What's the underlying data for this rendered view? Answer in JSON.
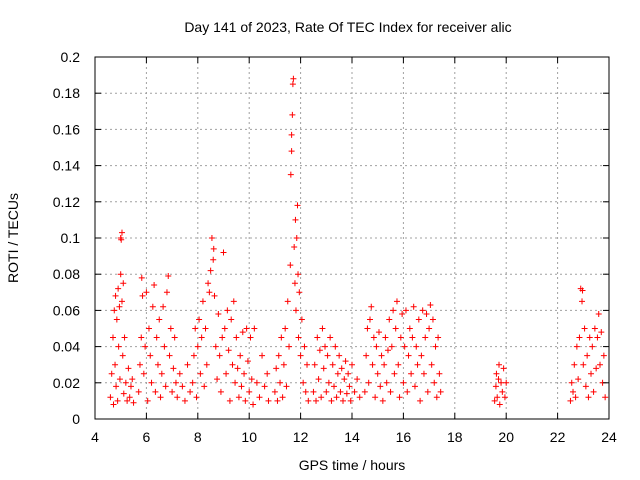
{
  "chart_data": {
    "type": "scatter",
    "title": "Day 141 of 2023, Rate Of TEC Index for receiver alic",
    "xlabel": "GPS time / hours",
    "ylabel": "ROTI / TECUs",
    "xlim": [
      4,
      24
    ],
    "ylim": [
      0,
      0.2
    ],
    "xticks": [
      4,
      6,
      8,
      10,
      12,
      14,
      16,
      18,
      20,
      22,
      24
    ],
    "yticks": [
      0,
      0.02,
      0.04,
      0.06,
      0.08,
      0.1,
      0.12,
      0.14,
      0.16,
      0.18,
      0.2
    ],
    "xtick_labels": [
      "4",
      "6",
      "8",
      "10",
      "12",
      "14",
      "16",
      "18",
      "20",
      "22",
      "24"
    ],
    "ytick_labels": [
      "0",
      "0.02",
      "0.04",
      "0.06",
      "0.08",
      "0.1",
      "0.12",
      "0.14",
      "0.16",
      "0.18",
      "0.2"
    ],
    "grid": true,
    "marker": "+",
    "color": "#ff0000",
    "series": [
      {
        "name": "ROTI",
        "points": [
          [
            4.6,
            0.012
          ],
          [
            4.65,
            0.025
          ],
          [
            4.7,
            0.045
          ],
          [
            4.72,
            0.008
          ],
          [
            4.75,
            0.06
          ],
          [
            4.78,
            0.03
          ],
          [
            4.8,
            0.068
          ],
          [
            4.82,
            0.018
          ],
          [
            4.85,
            0.055
          ],
          [
            4.88,
            0.01
          ],
          [
            4.9,
            0.072
          ],
          [
            4.92,
            0.04
          ],
          [
            4.95,
            0.062
          ],
          [
            4.97,
            0.022
          ],
          [
            5.0,
            0.08
          ],
          [
            5.0,
            0.1
          ],
          [
            5.02,
            0.099
          ],
          [
            5.05,
            0.103
          ],
          [
            5.05,
            0.065
          ],
          [
            5.08,
            0.035
          ],
          [
            5.1,
            0.075
          ],
          [
            5.12,
            0.014
          ],
          [
            5.15,
            0.045
          ],
          [
            5.2,
            0.02
          ],
          [
            5.25,
            0.01
          ],
          [
            5.3,
            0.028
          ],
          [
            5.35,
            0.012
          ],
          [
            5.4,
            0.018
          ],
          [
            5.45,
            0.022
          ],
          [
            5.5,
            0.009
          ],
          [
            5.7,
            0.015
          ],
          [
            5.75,
            0.03
          ],
          [
            5.8,
            0.045
          ],
          [
            5.82,
            0.078
          ],
          [
            5.85,
            0.068
          ],
          [
            5.9,
            0.025
          ],
          [
            5.95,
            0.04
          ],
          [
            6.0,
            0.07
          ],
          [
            6.05,
            0.01
          ],
          [
            6.1,
            0.05
          ],
          [
            6.15,
            0.035
          ],
          [
            6.2,
            0.02
          ],
          [
            6.25,
            0.062
          ],
          [
            6.3,
            0.074
          ],
          [
            6.35,
            0.015
          ],
          [
            6.4,
            0.045
          ],
          [
            6.45,
            0.03
          ],
          [
            6.5,
            0.055
          ],
          [
            6.55,
            0.012
          ],
          [
            6.6,
            0.025
          ],
          [
            6.65,
            0.062
          ],
          [
            6.7,
            0.04
          ],
          [
            6.75,
            0.018
          ],
          [
            6.8,
            0.07
          ],
          [
            6.85,
            0.079
          ],
          [
            6.9,
            0.035
          ],
          [
            6.95,
            0.05
          ],
          [
            7.0,
            0.015
          ],
          [
            7.05,
            0.028
          ],
          [
            7.1,
            0.045
          ],
          [
            7.15,
            0.02
          ],
          [
            7.2,
            0.012
          ],
          [
            7.3,
            0.025
          ],
          [
            7.4,
            0.018
          ],
          [
            7.5,
            0.01
          ],
          [
            7.6,
            0.03
          ],
          [
            7.7,
            0.015
          ],
          [
            7.8,
            0.02
          ],
          [
            7.85,
            0.035
          ],
          [
            7.9,
            0.05
          ],
          [
            7.95,
            0.012
          ],
          [
            8.0,
            0.04
          ],
          [
            8.05,
            0.055
          ],
          [
            8.1,
            0.025
          ],
          [
            8.15,
            0.045
          ],
          [
            8.2,
            0.065
          ],
          [
            8.25,
            0.018
          ],
          [
            8.3,
            0.05
          ],
          [
            8.35,
            0.03
          ],
          [
            8.4,
            0.075
          ],
          [
            8.45,
            0.07
          ],
          [
            8.5,
            0.082
          ],
          [
            8.55,
            0.1
          ],
          [
            8.6,
            0.088
          ],
          [
            8.62,
            0.094
          ],
          [
            8.65,
            0.068
          ],
          [
            8.7,
            0.04
          ],
          [
            8.75,
            0.022
          ],
          [
            8.8,
            0.058
          ],
          [
            8.85,
            0.035
          ],
          [
            8.9,
            0.015
          ],
          [
            8.95,
            0.045
          ],
          [
            9.0,
            0.092
          ],
          [
            9.05,
            0.05
          ],
          [
            9.1,
            0.025
          ],
          [
            9.15,
            0.06
          ],
          [
            9.2,
            0.038
          ],
          [
            9.25,
            0.01
          ],
          [
            9.3,
            0.055
          ],
          [
            9.35,
            0.03
          ],
          [
            9.4,
            0.065
          ],
          [
            9.45,
            0.02
          ],
          [
            9.5,
            0.045
          ],
          [
            9.55,
            0.028
          ],
          [
            9.6,
            0.012
          ],
          [
            9.65,
            0.035
          ],
          [
            9.7,
            0.018
          ],
          [
            9.75,
            0.048
          ],
          [
            9.8,
            0.025
          ],
          [
            9.85,
            0.01
          ],
          [
            9.9,
            0.05
          ],
          [
            9.95,
            0.032
          ],
          [
            10.0,
            0.015
          ],
          [
            10.05,
            0.045
          ],
          [
            10.1,
            0.022
          ],
          [
            10.15,
            0.008
          ],
          [
            10.2,
            0.05
          ],
          [
            10.3,
            0.02
          ],
          [
            10.4,
            0.012
          ],
          [
            10.5,
            0.035
          ],
          [
            10.6,
            0.018
          ],
          [
            10.7,
            0.025
          ],
          [
            10.75,
            0.01
          ],
          [
            11.0,
            0.015
          ],
          [
            11.05,
            0.028
          ],
          [
            11.1,
            0.01
          ],
          [
            11.15,
            0.035
          ],
          [
            11.2,
            0.02
          ],
          [
            11.25,
            0.045
          ],
          [
            11.3,
            0.012
          ],
          [
            11.35,
            0.03
          ],
          [
            11.4,
            0.05
          ],
          [
            11.45,
            0.018
          ],
          [
            11.5,
            0.065
          ],
          [
            11.55,
            0.04
          ],
          [
            11.6,
            0.085
          ],
          [
            11.62,
            0.135
          ],
          [
            11.65,
            0.148
          ],
          [
            11.65,
            0.157
          ],
          [
            11.68,
            0.168
          ],
          [
            11.7,
            0.185
          ],
          [
            11.72,
            0.188
          ],
          [
            11.75,
            0.095
          ],
          [
            11.78,
            0.075
          ],
          [
            11.8,
            0.11
          ],
          [
            11.82,
            0.06
          ],
          [
            11.85,
            0.1
          ],
          [
            11.88,
            0.118
          ],
          [
            11.9,
            0.08
          ],
          [
            11.92,
            0.045
          ],
          [
            11.95,
            0.07
          ],
          [
            12.0,
            0.035
          ],
          [
            12.05,
            0.055
          ],
          [
            12.1,
            0.02
          ],
          [
            12.15,
            0.04
          ],
          [
            12.2,
            0.015
          ],
          [
            12.25,
            0.03
          ],
          [
            12.3,
            0.01
          ],
          [
            12.5,
            0.015
          ],
          [
            12.55,
            0.03
          ],
          [
            12.6,
            0.01
          ],
          [
            12.65,
            0.045
          ],
          [
            12.7,
            0.022
          ],
          [
            12.75,
            0.038
          ],
          [
            12.8,
            0.012
          ],
          [
            12.85,
            0.05
          ],
          [
            12.9,
            0.028
          ],
          [
            12.95,
            0.04
          ],
          [
            13.0,
            0.015
          ],
          [
            13.05,
            0.035
          ],
          [
            13.1,
            0.02
          ],
          [
            13.15,
            0.045
          ],
          [
            13.2,
            0.01
          ],
          [
            13.25,
            0.03
          ],
          [
            13.3,
            0.018
          ],
          [
            13.35,
            0.04
          ],
          [
            13.4,
            0.012
          ],
          [
            13.45,
            0.025
          ],
          [
            13.5,
            0.035
          ],
          [
            13.55,
            0.015
          ],
          [
            13.6,
            0.028
          ],
          [
            13.65,
            0.01
          ],
          [
            13.7,
            0.022
          ],
          [
            13.75,
            0.032
          ],
          [
            13.8,
            0.014
          ],
          [
            13.85,
            0.025
          ],
          [
            13.9,
            0.018
          ],
          [
            13.95,
            0.01
          ],
          [
            14.0,
            0.03
          ],
          [
            14.1,
            0.015
          ],
          [
            14.2,
            0.022
          ],
          [
            14.3,
            0.012
          ],
          [
            14.5,
            0.015
          ],
          [
            14.55,
            0.035
          ],
          [
            14.6,
            0.05
          ],
          [
            14.65,
            0.02
          ],
          [
            14.7,
            0.055
          ],
          [
            14.75,
            0.062
          ],
          [
            14.8,
            0.03
          ],
          [
            14.85,
            0.045
          ],
          [
            14.9,
            0.012
          ],
          [
            14.95,
            0.04
          ],
          [
            15.0,
            0.025
          ],
          [
            15.05,
            0.048
          ],
          [
            15.1,
            0.018
          ],
          [
            15.15,
            0.035
          ],
          [
            15.2,
            0.01
          ],
          [
            15.25,
            0.03
          ],
          [
            15.3,
            0.045
          ],
          [
            15.35,
            0.02
          ],
          [
            15.4,
            0.038
          ],
          [
            15.45,
            0.055
          ],
          [
            15.5,
            0.015
          ],
          [
            15.55,
            0.04
          ],
          [
            15.6,
            0.06
          ],
          [
            15.65,
            0.025
          ],
          [
            15.7,
            0.05
          ],
          [
            15.75,
            0.065
          ],
          [
            15.8,
            0.03
          ],
          [
            15.85,
            0.012
          ],
          [
            15.9,
            0.045
          ],
          [
            15.95,
            0.058
          ],
          [
            16.0,
            0.02
          ],
          [
            16.05,
            0.04
          ],
          [
            16.1,
            0.06
          ],
          [
            16.15,
            0.015
          ],
          [
            16.2,
            0.035
          ],
          [
            16.25,
            0.05
          ],
          [
            16.3,
            0.025
          ],
          [
            16.35,
            0.045
          ],
          [
            16.4,
            0.062
          ],
          [
            16.45,
            0.018
          ],
          [
            16.5,
            0.04
          ],
          [
            16.55,
            0.03
          ],
          [
            16.6,
            0.055
          ],
          [
            16.65,
            0.01
          ],
          [
            16.7,
            0.035
          ],
          [
            16.75,
            0.06
          ],
          [
            16.8,
            0.025
          ],
          [
            16.85,
            0.045
          ],
          [
            16.9,
            0.058
          ],
          [
            16.95,
            0.015
          ],
          [
            17.0,
            0.05
          ],
          [
            17.05,
            0.063
          ],
          [
            17.1,
            0.03
          ],
          [
            17.15,
            0.055
          ],
          [
            17.2,
            0.02
          ],
          [
            17.25,
            0.04
          ],
          [
            17.3,
            0.012
          ],
          [
            17.35,
            0.045
          ],
          [
            17.4,
            0.025
          ],
          [
            17.45,
            0.015
          ],
          [
            19.55,
            0.01
          ],
          [
            19.6,
            0.018
          ],
          [
            19.62,
            0.025
          ],
          [
            19.65,
            0.012
          ],
          [
            19.7,
            0.022
          ],
          [
            19.72,
            0.03
          ],
          [
            19.75,
            0.008
          ],
          [
            19.8,
            0.02
          ],
          [
            19.85,
            0.015
          ],
          [
            19.9,
            0.028
          ],
          [
            19.95,
            0.012
          ],
          [
            20.0,
            0.02
          ],
          [
            22.5,
            0.01
          ],
          [
            22.55,
            0.02
          ],
          [
            22.6,
            0.015
          ],
          [
            22.65,
            0.03
          ],
          [
            22.7,
            0.012
          ],
          [
            22.75,
            0.04
          ],
          [
            22.8,
            0.022
          ],
          [
            22.85,
            0.045
          ],
          [
            22.9,
            0.072
          ],
          [
            22.95,
            0.065
          ],
          [
            22.97,
            0.071
          ],
          [
            23.0,
            0.03
          ],
          [
            23.05,
            0.05
          ],
          [
            23.1,
            0.018
          ],
          [
            23.15,
            0.035
          ],
          [
            23.2,
            0.012
          ],
          [
            23.25,
            0.045
          ],
          [
            23.3,
            0.025
          ],
          [
            23.35,
            0.04
          ],
          [
            23.4,
            0.015
          ],
          [
            23.45,
            0.05
          ],
          [
            23.5,
            0.028
          ],
          [
            23.55,
            0.045
          ],
          [
            23.6,
            0.058
          ],
          [
            23.65,
            0.03
          ],
          [
            23.7,
            0.048
          ],
          [
            23.75,
            0.02
          ],
          [
            23.8,
            0.035
          ],
          [
            23.85,
            0.012
          ]
        ]
      }
    ]
  }
}
